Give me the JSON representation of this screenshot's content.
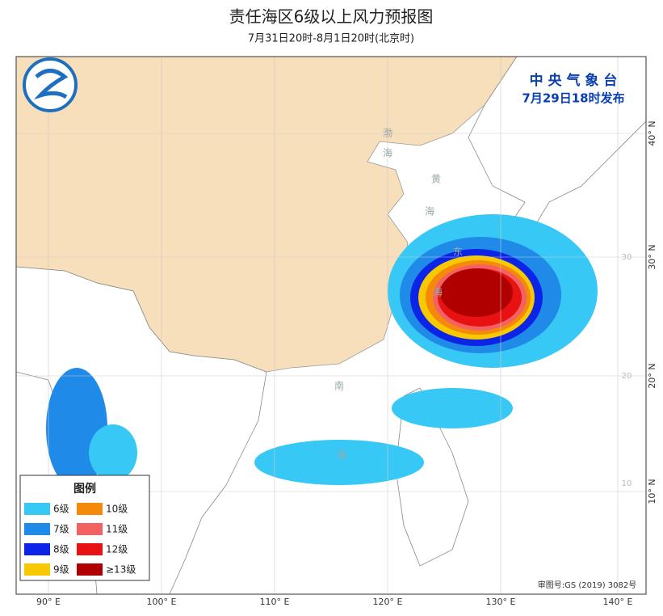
{
  "header": {
    "title": "责任海区6级以上风力预报图",
    "subtitle": "7月31日20时-8月1日20时(北京时)"
  },
  "agency": {
    "name": "中 央 气 象 台",
    "issued": "7月29日18时发布"
  },
  "longitude_labels": [
    "90° E",
    "100° E",
    "110° E",
    "120° E",
    "130° E",
    "140° E"
  ],
  "latitude_labels": [
    "40° N",
    "30° N",
    "20° N",
    "10° N"
  ],
  "inner_latitude_labels": [
    "30",
    "20",
    "10"
  ],
  "sea_labels": [
    "渤",
    "海",
    "黄",
    "海",
    "东",
    "海",
    "南",
    "海"
  ],
  "legend": {
    "title": "图例",
    "items": [
      {
        "label": "6级",
        "color": "#38c8f5"
      },
      {
        "label": "7级",
        "color": "#1f8ae8"
      },
      {
        "label": "8级",
        "color": "#0b24e6"
      },
      {
        "label": "9级",
        "color": "#f8c800"
      },
      {
        "label": "10级",
        "color": "#f5890a"
      },
      {
        "label": "11级",
        "color": "#f26262"
      },
      {
        "label": "12级",
        "color": "#e81212"
      },
      {
        "label": "≥13级",
        "color": "#b00000"
      }
    ]
  },
  "approval": "审图号:GS (2019) 3082号"
}
